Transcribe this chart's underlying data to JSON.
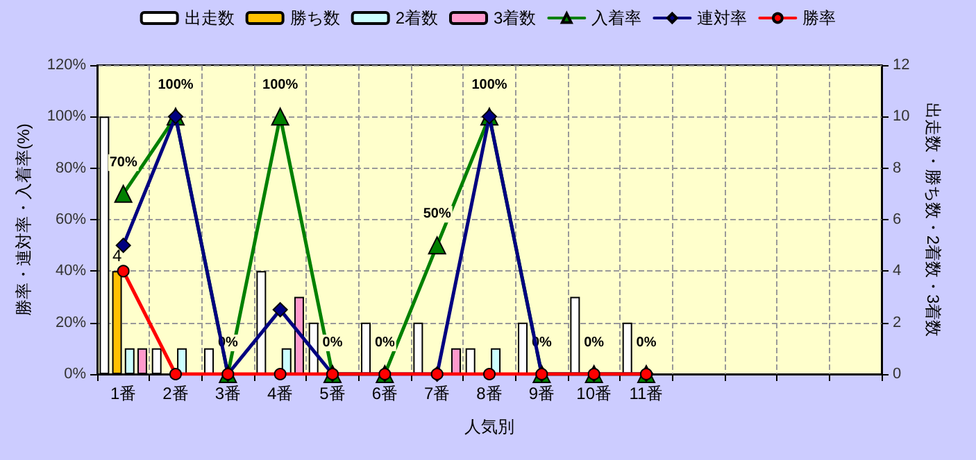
{
  "chart_data": {
    "type": "bar",
    "xlabel": "人気別",
    "ylabel": "勝率・連対率・入着率(%)",
    "y2label": "出走数・勝ち数・2着数・3着数",
    "categories": [
      "1番",
      "2番",
      "3番",
      "4番",
      "5番",
      "6番",
      "7番",
      "8番",
      "9番",
      "10番",
      "11番",
      null,
      null,
      null,
      null
    ],
    "series": [
      {
        "name": "出走数",
        "axis": "y2",
        "color": "#ffffff",
        "values": [
          10,
          1,
          1,
          4,
          2,
          2,
          2,
          1,
          2,
          3,
          2,
          null,
          null,
          null,
          null
        ]
      },
      {
        "name": "勝ち数",
        "axis": "y2",
        "color": "#ffc000",
        "values": [
          4,
          0,
          0,
          0,
          0,
          0,
          0,
          0,
          0,
          0,
          0,
          null,
          null,
          null,
          null
        ],
        "value_labels": [
          "4",
          null,
          null,
          null,
          null,
          null,
          null,
          null,
          null,
          null,
          null,
          null,
          null,
          null,
          null
        ]
      },
      {
        "name": "2着数",
        "axis": "y2",
        "color": "#ccffff",
        "values": [
          1,
          1,
          0,
          1,
          0,
          0,
          0,
          1,
          0,
          0,
          0,
          null,
          null,
          null,
          null
        ]
      },
      {
        "name": "3着数",
        "axis": "y2",
        "color": "#ff99cc",
        "values": [
          1,
          0,
          0,
          3,
          0,
          0,
          1,
          0,
          0,
          0,
          0,
          null,
          null,
          null,
          null
        ]
      },
      {
        "name": "入着率",
        "type": "line",
        "color": "#008000",
        "marker": "triangle",
        "values": [
          70,
          100,
          0,
          100,
          0,
          0,
          50,
          100,
          0,
          0,
          0,
          null,
          null,
          null,
          null
        ],
        "value_labels": [
          "70%",
          "100%",
          "0%",
          "100%",
          "0%",
          "0%",
          "50%",
          "100%",
          "0%",
          "0%",
          "0%",
          null,
          null,
          null,
          null
        ]
      },
      {
        "name": "連対率",
        "type": "line",
        "color": "#000080",
        "marker": "diamond",
        "values": [
          50,
          100,
          0,
          25,
          0,
          0,
          0,
          100,
          0,
          0,
          0,
          null,
          null,
          null,
          null
        ]
      },
      {
        "name": "勝率",
        "type": "line",
        "color": "#ff0000",
        "marker": "circle",
        "values": [
          40,
          0,
          0,
          0,
          0,
          0,
          0,
          0,
          0,
          0,
          0,
          null,
          null,
          null,
          null
        ]
      }
    ],
    "ylim": [
      0,
      120
    ],
    "yticks": [
      {
        "value": 0,
        "label": "0%"
      },
      {
        "value": 20,
        "label": "20%"
      },
      {
        "value": 40,
        "label": "40%"
      },
      {
        "value": 60,
        "label": "60%"
      },
      {
        "value": 80,
        "label": "80%"
      },
      {
        "value": 100,
        "label": "100%"
      },
      {
        "value": 120,
        "label": "120%"
      }
    ],
    "y2lim": [
      0,
      12
    ],
    "y2ticks": [
      0,
      2,
      4,
      6,
      8,
      10,
      12
    ],
    "grid": true,
    "legend": "top"
  }
}
